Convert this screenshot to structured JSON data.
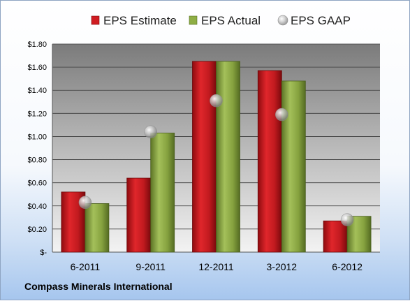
{
  "chart_data": {
    "type": "bar",
    "categories": [
      "6-2011",
      "9-2011",
      "12-2011",
      "3-2012",
      "6-2012"
    ],
    "series": [
      {
        "name": "EPS Estimate",
        "type": "bar",
        "color": "#c0151b",
        "values": [
          0.52,
          0.64,
          1.65,
          1.57,
          0.27
        ]
      },
      {
        "name": "EPS Actual",
        "type": "bar",
        "color": "#7e9a3a",
        "values": [
          0.42,
          1.03,
          1.65,
          1.48,
          0.31
        ]
      },
      {
        "name": "EPS GAAP",
        "type": "marker",
        "color": "#c0c0c0",
        "values": [
          0.43,
          1.04,
          1.31,
          1.19,
          0.28
        ]
      }
    ],
    "ylim": [
      0,
      1.8
    ],
    "ytick_labels": [
      "$-",
      "$0.20",
      "$0.40",
      "$0.60",
      "$0.80",
      "$1.00",
      "$1.20",
      "$1.40",
      "$1.60",
      "$1.80"
    ],
    "grid": true,
    "legend_position": "top"
  },
  "company": "Compass Minerals International"
}
